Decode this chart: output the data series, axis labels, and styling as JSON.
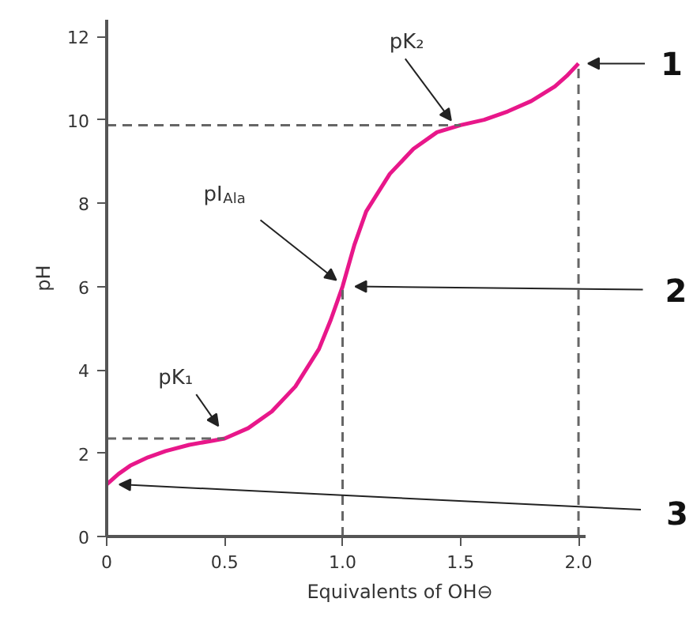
{
  "chart_data": {
    "type": "line",
    "xlabel": "Equivalents of OH⊖",
    "ylabel": "pH",
    "x": [
      0,
      0.05,
      0.1,
      0.175,
      0.25,
      0.35,
      0.45,
      0.5,
      0.6,
      0.7,
      0.8,
      0.9,
      0.95,
      1.0,
      1.05,
      1.1,
      1.2,
      1.3,
      1.4,
      1.5,
      1.6,
      1.7,
      1.8,
      1.9,
      1.95,
      2.0
    ],
    "series": [
      {
        "color": "#e8178a",
        "values": [
          1.25,
          1.5,
          1.7,
          1.9,
          2.05,
          2.2,
          2.3,
          2.35,
          2.6,
          3.0,
          3.6,
          4.5,
          5.2,
          6.0,
          7.0,
          7.8,
          8.7,
          9.3,
          9.7,
          9.87,
          10.0,
          10.2,
          10.45,
          10.8,
          11.05,
          11.35
        ]
      }
    ],
    "xlim": [
      0,
      2.03
    ],
    "ylim": [
      0,
      12.4
    ],
    "xticks": [
      0,
      0.5,
      {
        "value": 1,
        "label": "1.0"
      },
      1.5,
      {
        "value": 2,
        "label": "2.0"
      }
    ],
    "yticks": [
      0,
      2,
      4,
      6,
      8,
      10,
      12
    ],
    "grid": false,
    "marker": "none",
    "line_style": "solid",
    "ref_lines": [
      {
        "axis": "y",
        "value": 9.87,
        "label": null,
        "color": "#666666",
        "line_style": "dashed"
      },
      {
        "axis": "y",
        "value": 2.35,
        "label": null,
        "color": "#666666",
        "line_style": "dashed"
      },
      {
        "axis": "x",
        "value": 1.0,
        "label": null,
        "color": "#666666",
        "line_style": "dashed"
      },
      {
        "axis": "x",
        "value": 2.0,
        "label": null,
        "color": "#666666",
        "line_style": "dashed"
      }
    ],
    "annotations": [
      {
        "text": "pK₂",
        "x": 1.48,
        "y": 9.87
      },
      {
        "text": "pI$_{Ala}$",
        "x": 1.0,
        "y": 6.0
      },
      {
        "text": "pK₁",
        "x": 0.5,
        "y": 2.35
      },
      {
        "text": "1",
        "x": 2.0,
        "y": 11.35
      },
      {
        "text": "2",
        "x": 1.0,
        "y": 6.0
      },
      {
        "text": "3",
        "x": 0.0,
        "y": 1.25
      }
    ]
  }
}
